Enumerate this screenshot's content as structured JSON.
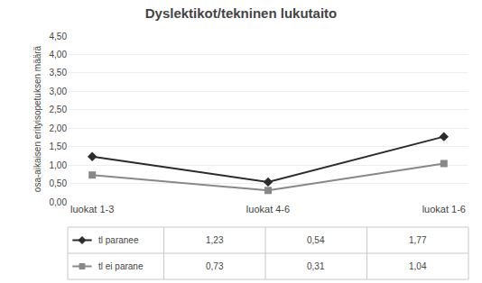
{
  "chart_data": {
    "type": "line",
    "title": "Dyslektikot/tekninen lukutaito",
    "ylabel": "osa-aikaisen erityisopetuksen määrä",
    "categories": [
      "luokat 1-3",
      "luokat 4-6",
      "luokat 1-6"
    ],
    "series": [
      {
        "name": "tl paranee",
        "color": "#2b2b2b",
        "marker": "diamond",
        "values": [
          1.23,
          0.54,
          1.77
        ],
        "value_labels": [
          "1,23",
          "0,54",
          "1,77"
        ]
      },
      {
        "name": "tl ei parane",
        "color": "#888888",
        "marker": "square",
        "values": [
          0.73,
          0.31,
          1.04
        ],
        "value_labels": [
          "0,73",
          "0,31",
          "1,04"
        ]
      }
    ],
    "ylim": [
      0.0,
      4.5
    ],
    "yticks": [
      {
        "value": 0.0,
        "label": "0,00"
      },
      {
        "value": 0.5,
        "label": "0,50"
      },
      {
        "value": 1.0,
        "label": "1,00"
      },
      {
        "value": 1.5,
        "label": "1,50"
      },
      {
        "value": 2.0,
        "label": "2,00"
      },
      {
        "value": 2.5,
        "label": "2,50"
      },
      {
        "value": 3.0,
        "label": "3,00"
      },
      {
        "value": 3.5,
        "label": "3,50"
      },
      {
        "value": 4.0,
        "label": "4,00"
      },
      {
        "value": 4.5,
        "label": "4,50"
      }
    ],
    "grid": true
  }
}
